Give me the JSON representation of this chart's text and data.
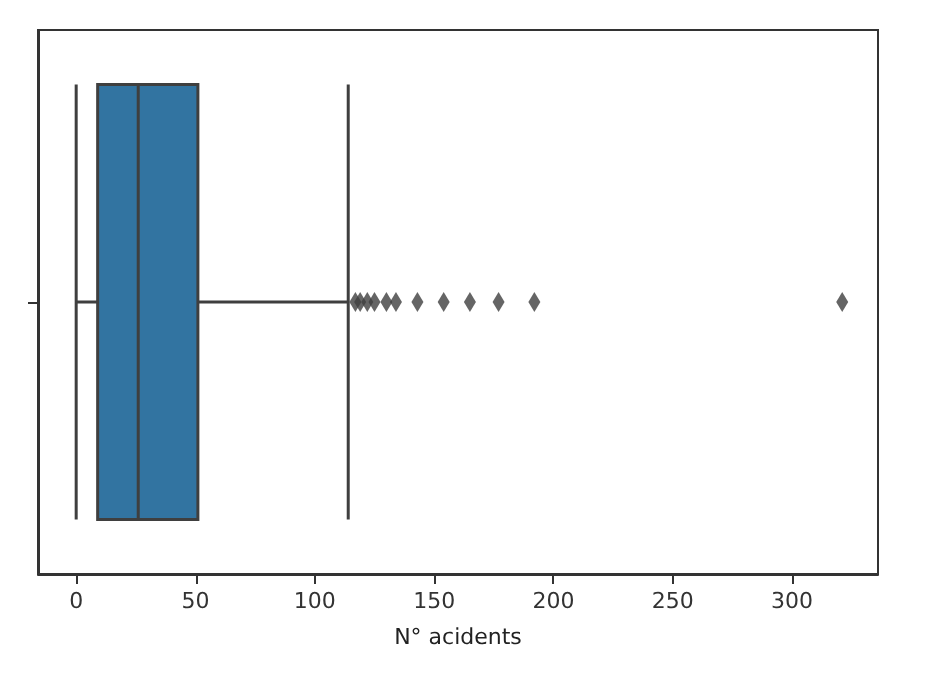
{
  "chart_data": {
    "type": "box",
    "orientation": "horizontal",
    "xlabel": "N° acidents",
    "categories": [
      null
    ],
    "series": [
      {
        "color": "#3274a1",
        "boxes": [
          {
            "low": 0,
            "q1": 9,
            "median": 26,
            "q3": 51,
            "high": 114,
            "outliers": [
              117,
              119,
              122,
              125,
              130,
              134,
              143,
              154,
              165,
              177,
              192,
              321
            ]
          }
        ]
      }
    ],
    "xlim": [
      -16,
      336
    ],
    "xticks": [
      0,
      50,
      100,
      150,
      200,
      250,
      300
    ],
    "tick_labels": "x",
    "marker": "diamond"
  }
}
